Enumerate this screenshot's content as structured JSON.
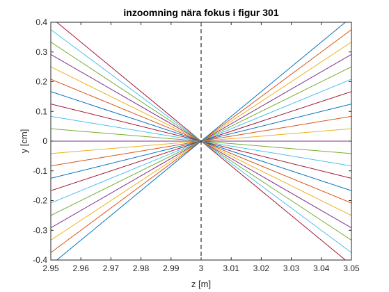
{
  "chart_data": {
    "type": "line",
    "title": "inzoomning nära fokus i figur 301",
    "xlabel": "z [m]",
    "ylabel": "y [cm]",
    "xlim": [
      2.95,
      3.05
    ],
    "ylim": [
      -0.4,
      0.4
    ],
    "x_ticks": [
      "2.95",
      "2.96",
      "2.97",
      "2.98",
      "2.99",
      "3",
      "3.01",
      "3.02",
      "3.03",
      "3.04",
      "3.05"
    ],
    "y_ticks": [
      "-0.4",
      "-0.3",
      "-0.2",
      "-0.1",
      "0",
      "0.1",
      "0.2",
      "0.3",
      "0.4"
    ],
    "x_tick_values": [
      2.95,
      2.96,
      2.97,
      2.98,
      2.99,
      3.0,
      3.01,
      3.02,
      3.03,
      3.04,
      3.05
    ],
    "y_tick_values": [
      -0.4,
      -0.3,
      -0.2,
      -0.1,
      0,
      0.1,
      0.2,
      0.3,
      0.4
    ],
    "grid": false,
    "focus_line": {
      "z": 3.0,
      "style": "dashed",
      "color": "#000000"
    },
    "focus_point": [
      3.0,
      0.0
    ],
    "series_endpoints": [
      {
        "z_left": 2.95,
        "y_left": 0.4167,
        "z_right": 3.05,
        "y_right": -0.4167,
        "color": "#A2142F"
      },
      {
        "z_left": 2.95,
        "y_left": 0.375,
        "z_right": 3.05,
        "y_right": -0.375,
        "color": "#4DBEEE"
      },
      {
        "z_left": 2.95,
        "y_left": 0.3333,
        "z_right": 3.05,
        "y_right": -0.3333,
        "color": "#77AC30"
      },
      {
        "z_left": 2.95,
        "y_left": 0.2917,
        "z_right": 3.05,
        "y_right": -0.2917,
        "color": "#7E2F8E"
      },
      {
        "z_left": 2.95,
        "y_left": 0.25,
        "z_right": 3.05,
        "y_right": -0.25,
        "color": "#EDB120"
      },
      {
        "z_left": 2.95,
        "y_left": 0.2083,
        "z_right": 3.05,
        "y_right": -0.2083,
        "color": "#D95319"
      },
      {
        "z_left": 2.95,
        "y_left": 0.1667,
        "z_right": 3.05,
        "y_right": -0.1667,
        "color": "#0072BD"
      },
      {
        "z_left": 2.95,
        "y_left": 0.125,
        "z_right": 3.05,
        "y_right": -0.125,
        "color": "#A2142F"
      },
      {
        "z_left": 2.95,
        "y_left": 0.0833,
        "z_right": 3.05,
        "y_right": -0.0833,
        "color": "#4DBEEE"
      },
      {
        "z_left": 2.95,
        "y_left": 0.0417,
        "z_right": 3.05,
        "y_right": -0.0417,
        "color": "#77AC30"
      },
      {
        "z_left": 2.95,
        "y_left": 0.0,
        "z_right": 3.05,
        "y_right": 0.0,
        "color": "#7E2F8E"
      },
      {
        "z_left": 2.95,
        "y_left": -0.0417,
        "z_right": 3.05,
        "y_right": 0.0417,
        "color": "#EDB120"
      },
      {
        "z_left": 2.95,
        "y_left": -0.0833,
        "z_right": 3.05,
        "y_right": 0.0833,
        "color": "#D95319"
      },
      {
        "z_left": 2.95,
        "y_left": -0.125,
        "z_right": 3.05,
        "y_right": 0.125,
        "color": "#0072BD"
      },
      {
        "z_left": 2.95,
        "y_left": -0.1667,
        "z_right": 3.05,
        "y_right": 0.1667,
        "color": "#A2142F"
      },
      {
        "z_left": 2.95,
        "y_left": -0.2083,
        "z_right": 3.05,
        "y_right": 0.2083,
        "color": "#4DBEEE"
      },
      {
        "z_left": 2.95,
        "y_left": -0.25,
        "z_right": 3.05,
        "y_right": 0.25,
        "color": "#77AC30"
      },
      {
        "z_left": 2.95,
        "y_left": -0.2917,
        "z_right": 3.05,
        "y_right": 0.2917,
        "color": "#7E2F8E"
      },
      {
        "z_left": 2.95,
        "y_left": -0.3333,
        "z_right": 3.05,
        "y_right": 0.3333,
        "color": "#EDB120"
      },
      {
        "z_left": 2.95,
        "y_left": -0.375,
        "z_right": 3.05,
        "y_right": 0.375,
        "color": "#D95319"
      },
      {
        "z_left": 2.95,
        "y_left": -0.4167,
        "z_right": 3.05,
        "y_right": 0.4167,
        "color": "#0072BD"
      }
    ]
  }
}
